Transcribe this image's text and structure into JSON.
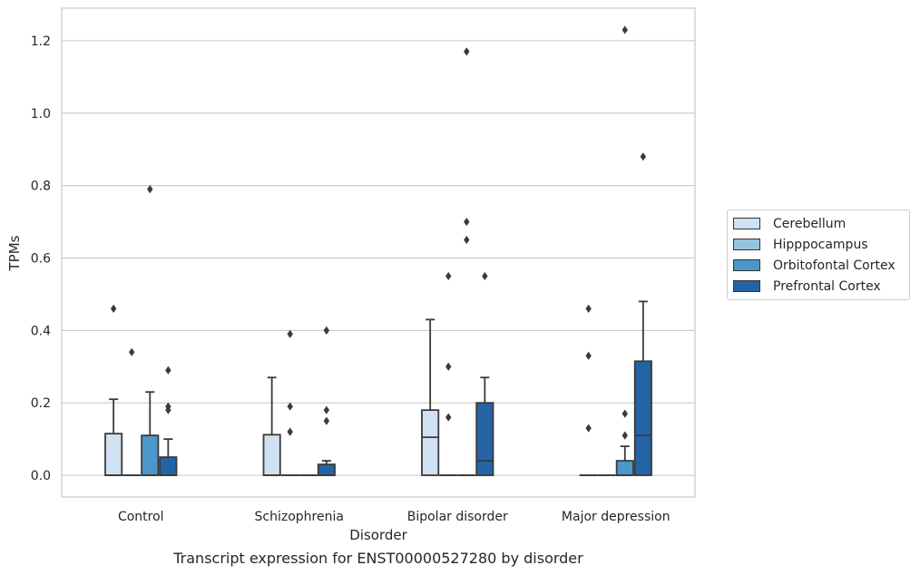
{
  "chart_data": {
    "type": "box",
    "title": "",
    "caption": "Transcript expression for ENST00000527280 by disorder",
    "xlabel": "Disorder",
    "ylabel": "TPMs",
    "ylim": [
      -0.06,
      1.29
    ],
    "yticks": [
      "0.0",
      "0.2",
      "0.4",
      "0.6",
      "0.8",
      "1.0",
      "1.2"
    ],
    "categories": [
      "Control",
      "Schizophrenia",
      "Bipolar disorder",
      "Major depression"
    ],
    "grid": "horizontal",
    "legend_position": "right",
    "series": [
      {
        "name": "Cerebellum",
        "color": "#d0e1f2",
        "boxes": [
          {
            "q1": 0,
            "median": 0,
            "q3": 0.115,
            "whisker_low": 0,
            "whisker_high": 0.21,
            "outliers": [
              0.46
            ]
          },
          {
            "q1": 0,
            "median": 0,
            "q3": 0.112,
            "whisker_low": 0,
            "whisker_high": 0.27,
            "outliers": []
          },
          {
            "q1": 0,
            "median": 0.105,
            "q3": 0.18,
            "whisker_low": 0,
            "whisker_high": 0.43,
            "outliers": []
          },
          {
            "q1": 0,
            "median": 0,
            "q3": 0,
            "whisker_low": 0,
            "whisker_high": 0,
            "outliers": [
              0.46,
              0.33,
              0.13
            ]
          }
        ]
      },
      {
        "name": "Hipppocampus",
        "color": "#94c4df",
        "boxes": [
          {
            "q1": 0,
            "median": 0,
            "q3": 0,
            "whisker_low": 0,
            "whisker_high": 0,
            "outliers": [
              0.34
            ]
          },
          {
            "q1": 0,
            "median": 0,
            "q3": 0,
            "whisker_low": 0,
            "whisker_high": 0,
            "outliers": [
              0.39,
              0.19,
              0.12
            ]
          },
          {
            "q1": 0,
            "median": 0,
            "q3": 0,
            "whisker_low": 0,
            "whisker_high": 0,
            "outliers": [
              0.55,
              0.3,
              0.16
            ]
          },
          {
            "q1": 0,
            "median": 0,
            "q3": 0,
            "whisker_low": 0,
            "whisker_high": 0,
            "outliers": []
          }
        ]
      },
      {
        "name": "Orbitofontal Cortex",
        "color": "#4a98c9",
        "boxes": [
          {
            "q1": 0,
            "median": 0,
            "q3": 0.11,
            "whisker_low": 0,
            "whisker_high": 0.23,
            "outliers": [
              0.79
            ]
          },
          {
            "q1": 0,
            "median": 0,
            "q3": 0,
            "whisker_low": 0,
            "whisker_high": 0,
            "outliers": []
          },
          {
            "q1": 0,
            "median": 0,
            "q3": 0,
            "whisker_low": 0,
            "whisker_high": 0,
            "outliers": [
              1.17,
              0.7,
              0.65
            ]
          },
          {
            "q1": 0,
            "median": 0,
            "q3": 0.04,
            "whisker_low": 0,
            "whisker_high": 0.08,
            "outliers": [
              1.23,
              0.17,
              0.11
            ]
          }
        ]
      },
      {
        "name": "Prefrontal Cortex",
        "color": "#2464a5",
        "boxes": [
          {
            "q1": 0,
            "median": 0,
            "q3": 0.05,
            "whisker_low": 0,
            "whisker_high": 0.1,
            "outliers": [
              0.29,
              0.19,
              0.18
            ]
          },
          {
            "q1": 0,
            "median": 0,
            "q3": 0.03,
            "whisker_low": 0,
            "whisker_high": 0.04,
            "outliers": [
              0.4,
              0.18,
              0.15
            ]
          },
          {
            "q1": 0,
            "median": 0.04,
            "q3": 0.2,
            "whisker_low": 0,
            "whisker_high": 0.27,
            "outliers": [
              0.55
            ]
          },
          {
            "q1": 0,
            "median": 0.11,
            "q3": 0.315,
            "whisker_low": 0,
            "whisker_high": 0.48,
            "outliers": [
              0.88
            ]
          }
        ]
      }
    ]
  }
}
